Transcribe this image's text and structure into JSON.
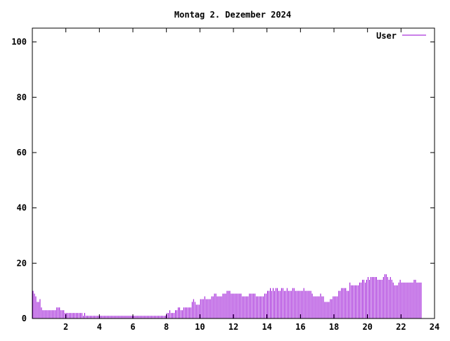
{
  "chart_data": {
    "type": "bar",
    "title": "Montag 2. Dezember 2024",
    "xlabel": "",
    "ylabel": "",
    "xlim": [
      0,
      24
    ],
    "ylim": [
      0,
      105
    ],
    "x_ticks": [
      2,
      4,
      6,
      8,
      10,
      12,
      14,
      16,
      18,
      20,
      22,
      24
    ],
    "x_tick_labels": [
      "2",
      "4",
      "6",
      "8",
      "10",
      "12",
      "14",
      "16",
      "18",
      "20",
      "22",
      "24"
    ],
    "y_ticks": [
      0,
      20,
      40,
      60,
      80,
      100
    ],
    "y_tick_labels": [
      "0",
      "20",
      "40",
      "60",
      "80",
      "100"
    ],
    "grid": false,
    "legend_position": "top-right",
    "series": [
      {
        "name": "User",
        "color": "#9400d3",
        "x_step_hours": 0.0833,
        "values": [
          10,
          9,
          8,
          6,
          6,
          7,
          4,
          3,
          3,
          3,
          3,
          3,
          3,
          3,
          3,
          3,
          3,
          4,
          4,
          4,
          3,
          3,
          3,
          2,
          2,
          2,
          2,
          2,
          2,
          2,
          2,
          2,
          2,
          2,
          2,
          2,
          1,
          2,
          1,
          1,
          1,
          1,
          1,
          1,
          1,
          1,
          1,
          1,
          1,
          1,
          1,
          1,
          1,
          1,
          1,
          1,
          1,
          1,
          1,
          1,
          1,
          1,
          1,
          1,
          1,
          1,
          1,
          1,
          1,
          1,
          1,
          1,
          1,
          1,
          1,
          1,
          1,
          1,
          1,
          1,
          1,
          1,
          1,
          1,
          1,
          1,
          1,
          1,
          1,
          1,
          1,
          1,
          1,
          1,
          1,
          1,
          2,
          2,
          3,
          2,
          2,
          2,
          3,
          3,
          4,
          4,
          3,
          3,
          4,
          4,
          4,
          4,
          4,
          4,
          6,
          7,
          6,
          5,
          5,
          5,
          7,
          7,
          7,
          8,
          7,
          7,
          7,
          7,
          8,
          8,
          9,
          9,
          8,
          8,
          8,
          8,
          9,
          9,
          9,
          10,
          10,
          10,
          9,
          9,
          9,
          9,
          9,
          9,
          9,
          9,
          8,
          8,
          8,
          8,
          8,
          9,
          9,
          9,
          9,
          9,
          8,
          8,
          8,
          8,
          8,
          8,
          9,
          9,
          10,
          10,
          11,
          10,
          11,
          10,
          11,
          11,
          10,
          10,
          11,
          11,
          10,
          10,
          11,
          10,
          10,
          10,
          11,
          11,
          10,
          10,
          10,
          10,
          10,
          10,
          11,
          10,
          10,
          10,
          10,
          10,
          9,
          8,
          8,
          8,
          8,
          8,
          9,
          8,
          8,
          6,
          6,
          6,
          6,
          7,
          7,
          8,
          8,
          8,
          8,
          10,
          10,
          11,
          11,
          11,
          11,
          10,
          10,
          13,
          12,
          12,
          12,
          12,
          12,
          12,
          13,
          13,
          14,
          14,
          13,
          14,
          15,
          14,
          15,
          15,
          15,
          15,
          15,
          14,
          14,
          14,
          14,
          15,
          16,
          16,
          15,
          14,
          15,
          14,
          13,
          12,
          12,
          12,
          13,
          14,
          13,
          13,
          13,
          13,
          13,
          13,
          13,
          13,
          13,
          14,
          14,
          13,
          13,
          13,
          13
        ]
      }
    ]
  }
}
